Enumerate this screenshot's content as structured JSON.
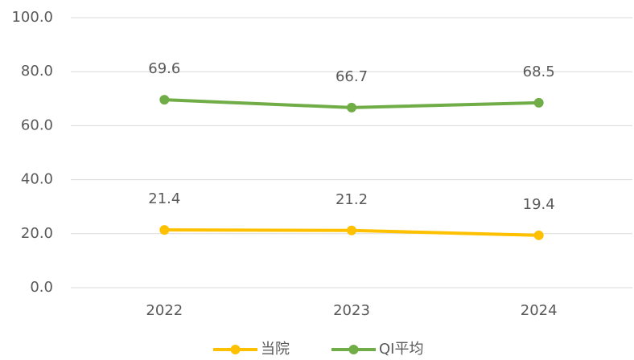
{
  "chart_data": {
    "type": "line",
    "categories": [
      "2022",
      "2023",
      "2024"
    ],
    "series": [
      {
        "name": "当院",
        "color": "#ffc000",
        "values": [
          21.4,
          21.2,
          19.4
        ]
      },
      {
        "name": "QI平均",
        "color": "#70ad47",
        "values": [
          69.6,
          66.7,
          68.5
        ]
      }
    ],
    "ylim": [
      0,
      100
    ],
    "yticks": [
      {
        "value": 0,
        "label": "0.0"
      },
      {
        "value": 20,
        "label": "20.0"
      },
      {
        "value": 40,
        "label": "40.0"
      },
      {
        "value": 60,
        "label": "60.0"
      },
      {
        "value": 80,
        "label": "80.0"
      },
      {
        "value": 100,
        "label": "100.0"
      }
    ],
    "grid": true,
    "legend": "bottom"
  }
}
